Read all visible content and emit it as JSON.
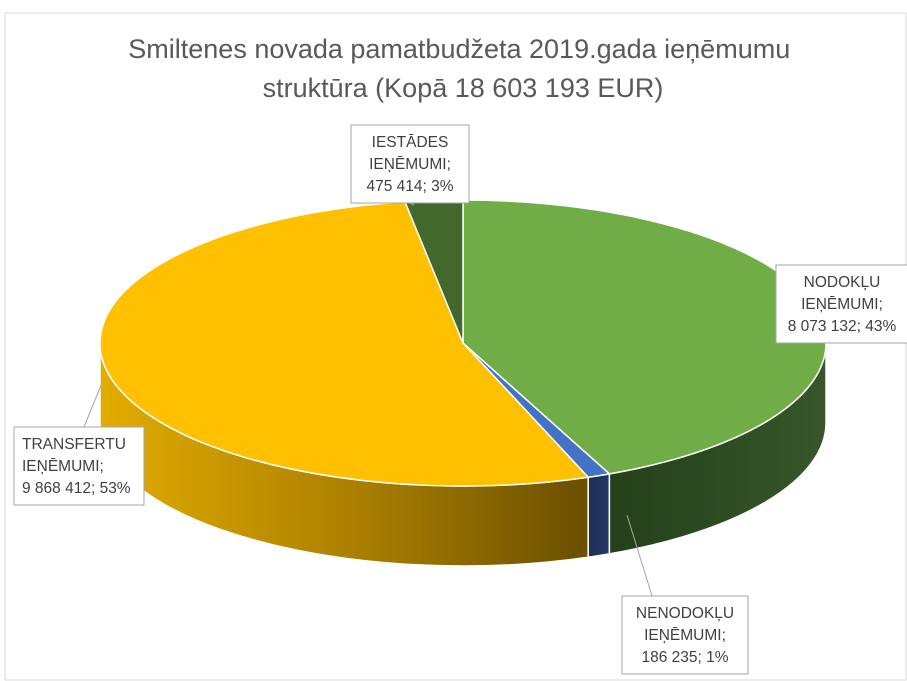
{
  "chart_data": {
    "type": "pie",
    "title": "Smiltenes novada pamatbudžeta 2019.gada ieņēmumu struktūra (Kopā 18 603 193 EUR)",
    "title_lines": [
      "Smiltenes novada pamatbudžeta 2019.gada ieņēmumu",
      "struktūra (Kopā 18 603 193 EUR)"
    ],
    "slices": [
      {
        "name": "NODOKĻU IEŅĒMUMI",
        "value": 8073132,
        "percent": 43,
        "color": "#70AD47",
        "label_lines": [
          "NODOKĻU",
          "IEŅĒMUMI;",
          "8 073 132; 43%"
        ]
      },
      {
        "name": "NENODOKĻU IEŅĒMUMI",
        "value": 186235,
        "percent": 1,
        "color": "#4472C4",
        "label_lines": [
          "NENODOKĻU",
          "IEŅĒMUMI;",
          "186 235; 1%"
        ]
      },
      {
        "name": "TRANSFERTU IEŅĒMUMI",
        "value": 9868412,
        "percent": 53,
        "color": "#FFC000",
        "label_lines": [
          "TRANSFERTU",
          "IEŅĒMUMI;",
          "9 868 412; 53%"
        ]
      },
      {
        "name": "IESTĀDES IEŅĒMUMI",
        "value": 475414,
        "percent": 3,
        "color": "#43682B",
        "label_lines": [
          "IESTĀDES",
          "IEŅĒMUMI;",
          "475 414; 3%"
        ]
      }
    ]
  }
}
